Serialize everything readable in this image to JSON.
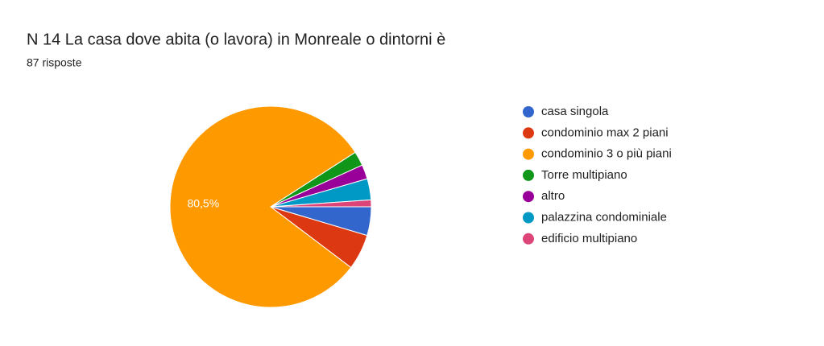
{
  "chart_data": {
    "type": "pie",
    "title": "N 14  La casa dove abita (o lavora) in Monreale o dintorni è",
    "subtitle": "87 risposte",
    "categories": [
      "casa singola",
      "condominio max 2 piani",
      "condominio 3 o più piani",
      "Torre multipiano",
      "altro",
      "palazzina condominiale",
      "edificio multipiano"
    ],
    "values": [
      4.6,
      5.7,
      80.5,
      2.3,
      2.3,
      3.4,
      1.1
    ],
    "value_labels": [
      null,
      null,
      "80,5%",
      null,
      null,
      null,
      null
    ],
    "colors": [
      "#3366cc",
      "#dc3912",
      "#ff9900",
      "#109618",
      "#990099",
      "#0099c6",
      "#dd4477"
    ],
    "legend": "right"
  }
}
